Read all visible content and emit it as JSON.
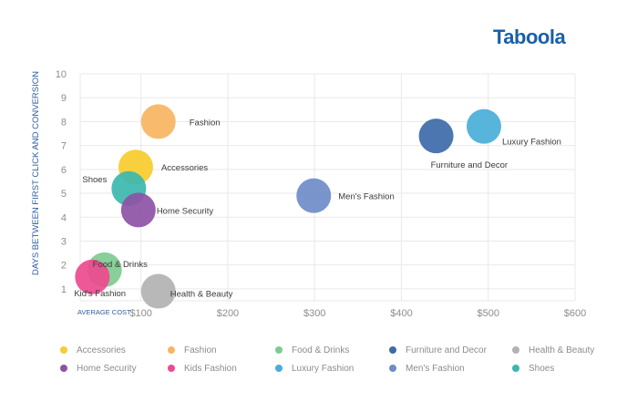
{
  "logo": {
    "text": "Taboola"
  },
  "chart_data": {
    "type": "scatter",
    "xlabel": "AVERAGE COST",
    "ylabel": "DAYS BETWEEN FIRST CLICK AND CONVERSION",
    "xlim": [
      30,
      600
    ],
    "ylim": [
      0.5,
      10
    ],
    "xticks": [
      100,
      200,
      300,
      400,
      500,
      600
    ],
    "xtick_labels": [
      "$100",
      "$200",
      "$300",
      "$400",
      "$500",
      "$600"
    ],
    "yticks": [
      1,
      2,
      3,
      4,
      5,
      6,
      7,
      8,
      9,
      10
    ],
    "grid": true,
    "legend_position": "bottom",
    "points": [
      {
        "name": "Fashion",
        "label": "Fashion",
        "x": 120,
        "y": 8.0,
        "color": "#f7b562"
      },
      {
        "name": "Accessories",
        "label": "Accessories",
        "x": 94,
        "y": 6.1,
        "color": "#f7cc2e"
      },
      {
        "name": "Shoes",
        "label": "Shoes",
        "x": 86,
        "y": 5.2,
        "color": "#3bb7ae"
      },
      {
        "name": "Home Security",
        "label": "Home Security",
        "x": 97,
        "y": 4.3,
        "color": "#8d52a6"
      },
      {
        "name": "Food & Drinks",
        "label": "Food & Drinks",
        "x": 58,
        "y": 1.8,
        "color": "#7ecb90"
      },
      {
        "name": "Kids Fashion",
        "label": "Kid's Fashion",
        "x": 44,
        "y": 1.5,
        "color": "#ee4a8e"
      },
      {
        "name": "Health & Beauty",
        "label": "Health & Beauty",
        "x": 120,
        "y": 0.9,
        "color": "#b2b2b2"
      },
      {
        "name": "Men's Fashion",
        "label": "Men's Fashion",
        "x": 299,
        "y": 4.9,
        "color": "#6e8cc8"
      },
      {
        "name": "Furniture and Decor",
        "label": "Furniture and Decor",
        "x": 440,
        "y": 7.4,
        "color": "#3d6aa8"
      },
      {
        "name": "Luxury Fashion",
        "label": "Luxury Fashion",
        "x": 495,
        "y": 7.8,
        "color": "#49aed8"
      }
    ],
    "legend": [
      {
        "label": "Accessories",
        "color": "#f7cc2e"
      },
      {
        "label": "Fashion",
        "color": "#f7b562"
      },
      {
        "label": "Food & Drinks",
        "color": "#7ecb90"
      },
      {
        "label": "Furniture and Decor",
        "color": "#3d6aa8"
      },
      {
        "label": "Health & Beauty",
        "color": "#b2b2b2"
      },
      {
        "label": "Home Security",
        "color": "#8d52a6"
      },
      {
        "label": "Kids Fashion",
        "color": "#ee4a8e"
      },
      {
        "label": "Luxury Fashion",
        "color": "#49aed8"
      },
      {
        "label": "Men's Fashion",
        "color": "#6e8cc8"
      },
      {
        "label": "Shoes",
        "color": "#3bb7ae"
      }
    ]
  }
}
